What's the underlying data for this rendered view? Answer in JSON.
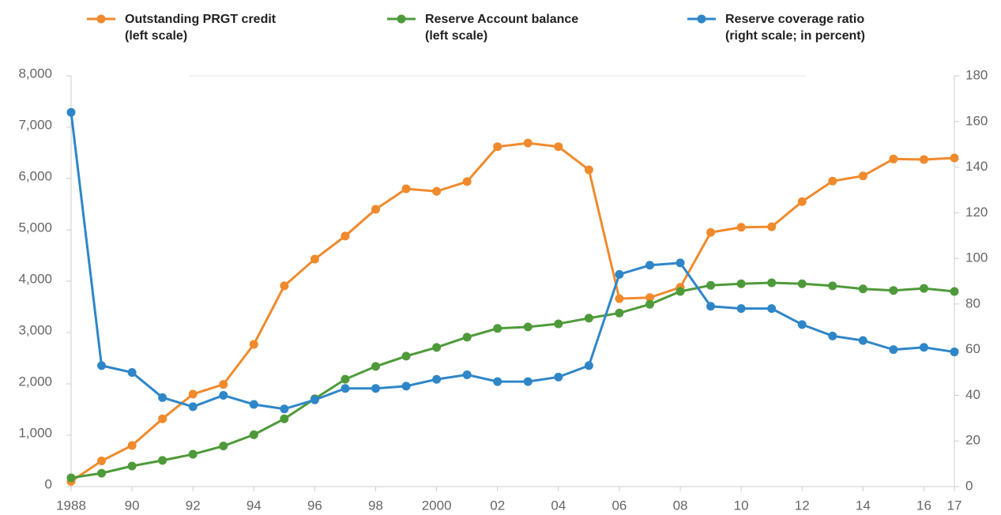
{
  "chart_data": {
    "type": "line",
    "categories": [
      "1988",
      null,
      "90",
      null,
      "92",
      null,
      "94",
      null,
      "96",
      null,
      "98",
      null,
      "2000",
      null,
      "02",
      null,
      "04",
      null,
      "06",
      null,
      "08",
      null,
      "10",
      null,
      "12",
      null,
      "14",
      null,
      "16",
      "17"
    ],
    "series": [
      {
        "name": "Outstanding PRGT credit\n(left scale)",
        "color": "#f08a2c",
        "values": [
          100,
          500,
          800,
          1320,
          1800,
          1990,
          2770,
          3910,
          4430,
          4880,
          5400,
          5800,
          5750,
          5940,
          6620,
          6690,
          6620,
          6170,
          3660,
          3680,
          3880,
          4950,
          5050,
          5060,
          5550,
          5950,
          6050,
          6380,
          6370,
          6400
        ]
      },
      {
        "name": "Reserve Account balance\n(left scale)",
        "color": "#4e9a3a",
        "values": [
          170,
          260,
          400,
          510,
          630,
          790,
          1010,
          1320,
          1710,
          2090,
          2340,
          2540,
          2710,
          2910,
          3080,
          3110,
          3170,
          3280,
          3380,
          3550,
          3800,
          3920,
          3950,
          3970,
          3950,
          3910,
          3850,
          3820,
          3860,
          3800
        ]
      },
      {
        "name": "Reserve coverage ratio\n(right scale; in percent)",
        "color": "#2e86c8",
        "axis": "y2",
        "values": [
          164,
          53,
          50,
          39,
          35,
          40,
          36,
          34,
          38,
          43,
          43,
          44,
          47,
          49,
          46,
          46,
          48,
          53,
          93,
          97,
          98,
          79,
          78,
          78,
          71,
          66,
          64,
          60,
          61,
          59
        ]
      }
    ],
    "ylim": [
      0,
      8000
    ],
    "yticks": [
      0,
      {
        "value": 1000,
        "label": "1,000"
      },
      {
        "value": 2000,
        "label": "2,000"
      },
      {
        "value": 3000,
        "label": "3,000"
      },
      {
        "value": 4000,
        "label": "4,000"
      },
      {
        "value": 5000,
        "label": "5,000"
      },
      {
        "value": 6000,
        "label": "6,000"
      },
      {
        "value": 7000,
        "label": "7,000"
      },
      {
        "value": 8000,
        "label": "8,000"
      }
    ],
    "y2lim": [
      0,
      180
    ],
    "y2ticks": [
      0,
      20,
      40,
      60,
      80,
      100,
      120,
      140,
      160,
      180
    ],
    "legend": "top"
  }
}
